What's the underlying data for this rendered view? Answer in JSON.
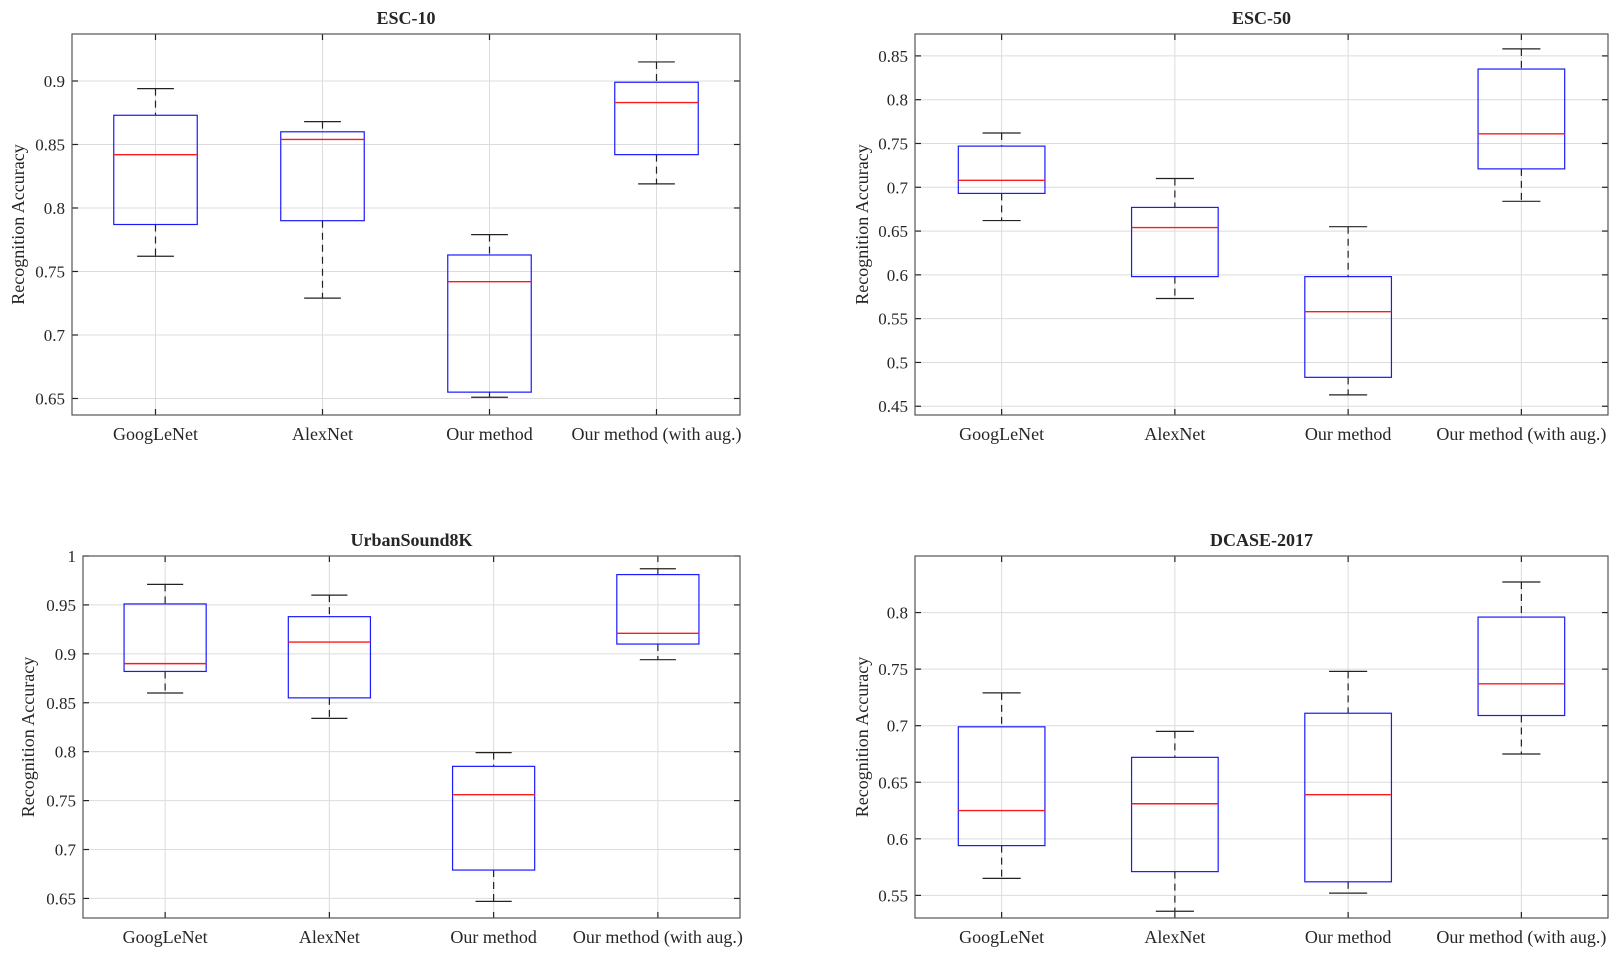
{
  "figure_label": "Box plots of recognition accuracy per dataset",
  "colors": {
    "box": "#1a1aff",
    "median": "#ff1a1a",
    "whisker": "#222222",
    "grid": "#dcdcdc",
    "frame": "#555555"
  },
  "chart_data": [
    {
      "type": "box",
      "title": "ESC-10",
      "ylabel": "Recognition Accuracy",
      "xlabel": "",
      "ylim": [
        0.637,
        0.937
      ],
      "yticks": [
        0.65,
        0.7,
        0.75,
        0.8,
        0.85,
        0.9
      ],
      "ytick_labels": [
        "0.65",
        "0.7",
        "0.75",
        "0.8",
        "0.85",
        "0.9"
      ],
      "grid": true,
      "categories": [
        "GoogLeNet",
        "AlexNet",
        "Our method",
        "Our method (with aug.)"
      ],
      "boxes": [
        {
          "min": 0.762,
          "q1": 0.787,
          "median": 0.842,
          "q3": 0.873,
          "max": 0.894
        },
        {
          "min": 0.729,
          "q1": 0.79,
          "median": 0.854,
          "q3": 0.86,
          "max": 0.868
        },
        {
          "min": 0.651,
          "q1": 0.655,
          "median": 0.742,
          "q3": 0.763,
          "max": 0.779
        },
        {
          "min": 0.819,
          "q1": 0.842,
          "median": 0.883,
          "q3": 0.899,
          "max": 0.915
        }
      ]
    },
    {
      "type": "box",
      "title": "ESC-50",
      "ylabel": "Recognition Accuracy",
      "xlabel": "",
      "ylim": [
        0.44,
        0.875
      ],
      "yticks": [
        0.45,
        0.5,
        0.55,
        0.6,
        0.65,
        0.7,
        0.75,
        0.8,
        0.85
      ],
      "ytick_labels": [
        "0.45",
        "0.5",
        "0.55",
        "0.6",
        "0.65",
        "0.7",
        "0.75",
        "0.8",
        "0.85"
      ],
      "grid": true,
      "categories": [
        "GoogLeNet",
        "AlexNet",
        "Our method",
        "Our method (with aug.)"
      ],
      "boxes": [
        {
          "min": 0.662,
          "q1": 0.693,
          "median": 0.708,
          "q3": 0.747,
          "max": 0.762
        },
        {
          "min": 0.573,
          "q1": 0.598,
          "median": 0.654,
          "q3": 0.677,
          "max": 0.71
        },
        {
          "min": 0.463,
          "q1": 0.483,
          "median": 0.558,
          "q3": 0.598,
          "max": 0.655
        },
        {
          "min": 0.684,
          "q1": 0.721,
          "median": 0.761,
          "q3": 0.835,
          "max": 0.858
        }
      ]
    },
    {
      "type": "box",
      "title": "UrbanSound8K",
      "ylabel": "Recognition Accuracy",
      "xlabel": "",
      "ylim": [
        0.63,
        1.0
      ],
      "yticks": [
        0.65,
        0.7,
        0.75,
        0.8,
        0.85,
        0.9,
        0.95,
        1.0
      ],
      "ytick_labels": [
        "0.65",
        "0.7",
        "0.75",
        "0.8",
        "0.85",
        "0.9",
        "0.95",
        "1"
      ],
      "grid": true,
      "categories": [
        "GoogLeNet",
        "AlexNet",
        "Our method",
        "Our method (with aug.)"
      ],
      "boxes": [
        {
          "min": 0.86,
          "q1": 0.882,
          "median": 0.89,
          "q3": 0.951,
          "max": 0.971
        },
        {
          "min": 0.834,
          "q1": 0.855,
          "median": 0.912,
          "q3": 0.938,
          "max": 0.96
        },
        {
          "min": 0.647,
          "q1": 0.679,
          "median": 0.756,
          "q3": 0.785,
          "max": 0.799
        },
        {
          "min": 0.894,
          "q1": 0.91,
          "median": 0.921,
          "q3": 0.981,
          "max": 0.987
        }
      ]
    },
    {
      "type": "box",
      "title": "DCASE-2017",
      "ylabel": "Recognition Accuracy",
      "xlabel": "",
      "ylim": [
        0.53,
        0.85
      ],
      "yticks": [
        0.55,
        0.6,
        0.65,
        0.7,
        0.75,
        0.8
      ],
      "ytick_labels": [
        "0.55",
        "0.6",
        "0.65",
        "0.7",
        "0.75",
        "0.8"
      ],
      "grid": true,
      "categories": [
        "GoogLeNet",
        "AlexNet",
        "Our method",
        "Our method (with aug.)"
      ],
      "boxes": [
        {
          "min": 0.565,
          "q1": 0.594,
          "median": 0.625,
          "q3": 0.699,
          "max": 0.729
        },
        {
          "min": 0.536,
          "q1": 0.571,
          "median": 0.631,
          "q3": 0.672,
          "max": 0.695
        },
        {
          "min": 0.552,
          "q1": 0.562,
          "median": 0.639,
          "q3": 0.711,
          "max": 0.748
        },
        {
          "min": 0.675,
          "q1": 0.709,
          "median": 0.737,
          "q3": 0.796,
          "max": 0.827
        }
      ]
    }
  ]
}
